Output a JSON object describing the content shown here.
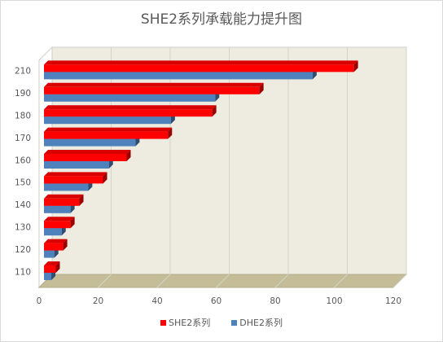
{
  "chart_data": {
    "type": "bar",
    "orientation": "horizontal",
    "style": "3d",
    "title": "SHE2系列承载能力提升图",
    "categories": [
      "110",
      "120",
      "130",
      "140",
      "150",
      "160",
      "170",
      "180",
      "190",
      "210"
    ],
    "series": [
      {
        "name": "SHE2系列",
        "color": "#ff0000",
        "values": [
          4,
          6.5,
          9,
          12,
          20,
          28,
          42,
          57,
          73,
          105
        ]
      },
      {
        "name": "DHE2系列",
        "color": "#4f81bd",
        "values": [
          2.5,
          3.5,
          6,
          9,
          15,
          22,
          31,
          43,
          58,
          91
        ]
      }
    ],
    "xlim": [
      0,
      120
    ],
    "x_ticks": [
      "0",
      "20",
      "40",
      "60",
      "80",
      "100",
      "120"
    ],
    "grid": true,
    "legend_position": "bottom"
  }
}
